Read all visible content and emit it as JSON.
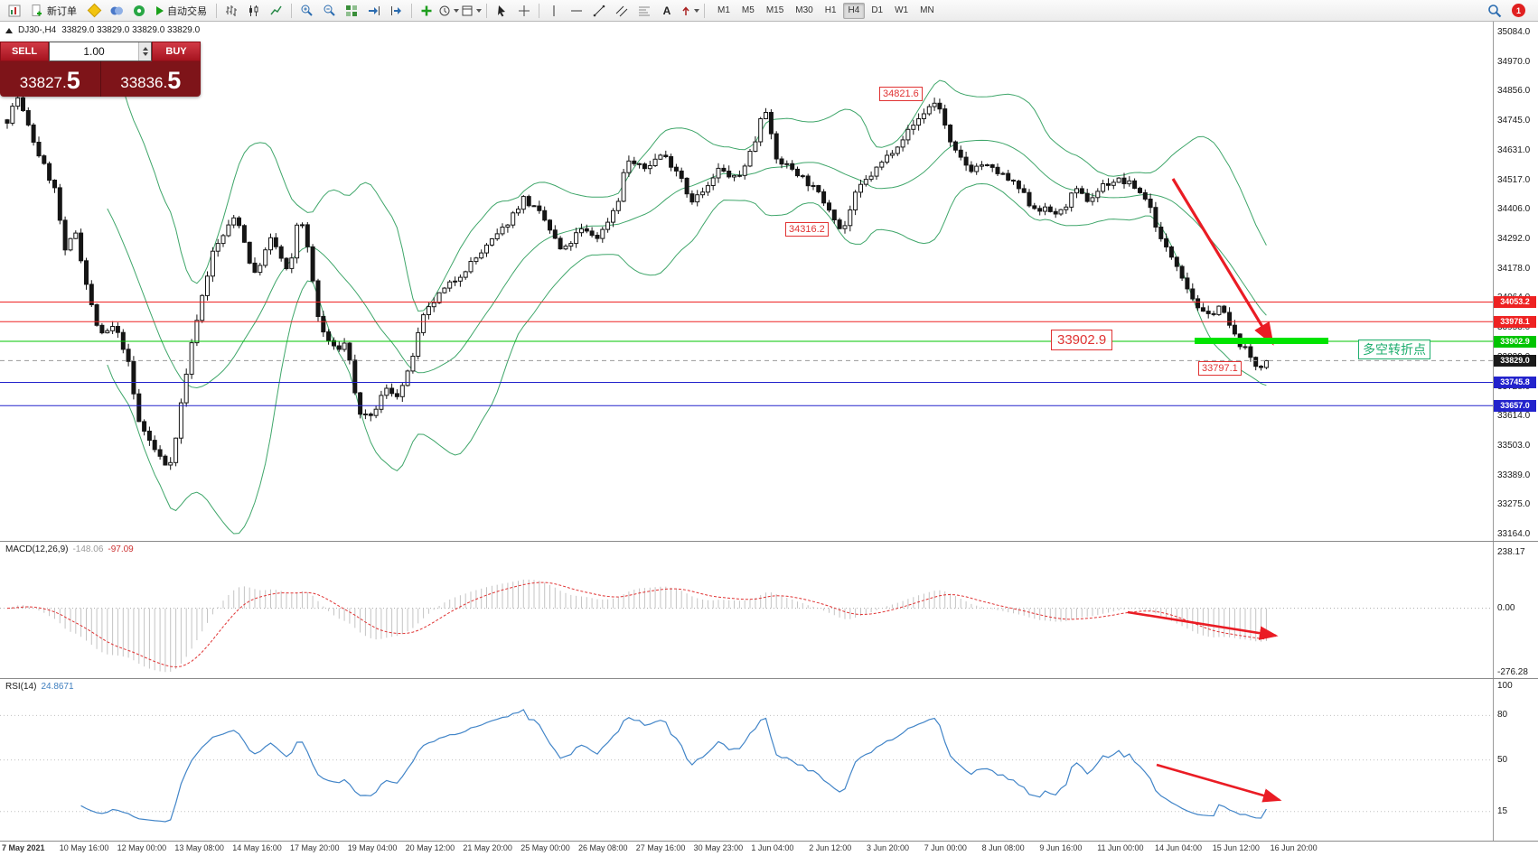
{
  "toolbar": {
    "new_order": "新订单",
    "autotrading": "自动交易",
    "text_tool": "A",
    "timeframes": [
      "M1",
      "M5",
      "M15",
      "M30",
      "H1",
      "H4",
      "D1",
      "W1",
      "MN"
    ],
    "active_timeframe": "H4",
    "notification_count": "1"
  },
  "header": {
    "symbol": "DJ30-,H4",
    "ohlc": "33829.0 33829.0 33829.0 33829.0"
  },
  "trade_panel": {
    "sell_label": "SELL",
    "buy_label": "BUY",
    "volume": "1.00",
    "sell_price": "33827.",
    "sell_price_big": "5",
    "buy_price": "33836.",
    "buy_price_big": "5"
  },
  "chart_data": {
    "type": "candlestick",
    "symbol": "DJ30-",
    "timeframe": "H4",
    "price_axis": {
      "max": 35084.0,
      "min": 33164.0,
      "ticks": [
        "35084.0",
        "34970.0",
        "34856.0",
        "34745.0",
        "34631.0",
        "34517.0",
        "34406.0",
        "34292.0",
        "34178.0",
        "34064.0",
        "33953.0",
        "33839.0",
        "33728.0",
        "33614.0",
        "33503.0",
        "33389.0",
        "33275.0",
        "33164.0"
      ]
    },
    "levels": [
      {
        "price": 34053.2,
        "label": "34053.2",
        "color": "#ee2222",
        "style": "solid"
      },
      {
        "price": 33978.1,
        "label": "33978.1",
        "color": "#ee2222",
        "style": "solid"
      },
      {
        "price": 33902.9,
        "label": "33902.9",
        "color": "#00c400",
        "style": "solid"
      },
      {
        "price": 33829.0,
        "label": "33829.0",
        "color": "#1a1a1a",
        "style": "dashed",
        "current": true
      },
      {
        "price": 33745.8,
        "label": "33745.8",
        "color": "#2323cc",
        "style": "solid"
      },
      {
        "price": 33657.0,
        "label": "33657.0",
        "color": "#2323cc",
        "style": "solid"
      }
    ],
    "last_price": 33829.0,
    "num_bars": 240,
    "waypoints": [
      [
        0,
        34750
      ],
      [
        0.008,
        34840
      ],
      [
        0.023,
        34640
      ],
      [
        0.038,
        34480
      ],
      [
        0.046,
        34240
      ],
      [
        0.054,
        34330
      ],
      [
        0.065,
        34070
      ],
      [
        0.074,
        33920
      ],
      [
        0.085,
        33960
      ],
      [
        0.095,
        33850
      ],
      [
        0.104,
        33600
      ],
      [
        0.118,
        33480
      ],
      [
        0.128,
        33420
      ],
      [
        0.135,
        33550
      ],
      [
        0.139,
        33700
      ],
      [
        0.15,
        33980
      ],
      [
        0.163,
        34240
      ],
      [
        0.182,
        34390
      ],
      [
        0.196,
        34150
      ],
      [
        0.21,
        34300
      ],
      [
        0.224,
        34150
      ],
      [
        0.232,
        34410
      ],
      [
        0.24,
        34220
      ],
      [
        0.248,
        33960
      ],
      [
        0.26,
        33870
      ],
      [
        0.27,
        33900
      ],
      [
        0.278,
        33640
      ],
      [
        0.288,
        33600
      ],
      [
        0.3,
        33720
      ],
      [
        0.31,
        33700
      ],
      [
        0.317,
        33760
      ],
      [
        0.33,
        33990
      ],
      [
        0.341,
        34070
      ],
      [
        0.36,
        34160
      ],
      [
        0.38,
        34260
      ],
      [
        0.395,
        34340
      ],
      [
        0.41,
        34450
      ],
      [
        0.425,
        34380
      ],
      [
        0.441,
        34240
      ],
      [
        0.455,
        34330
      ],
      [
        0.47,
        34300
      ],
      [
        0.485,
        34440
      ],
      [
        0.492,
        34600
      ],
      [
        0.505,
        34560
      ],
      [
        0.52,
        34620
      ],
      [
        0.535,
        34540
      ],
      [
        0.542,
        34440
      ],
      [
        0.555,
        34480
      ],
      [
        0.565,
        34560
      ],
      [
        0.58,
        34520
      ],
      [
        0.595,
        34680
      ],
      [
        0.601,
        34830
      ],
      [
        0.61,
        34600
      ],
      [
        0.625,
        34560
      ],
      [
        0.642,
        34480
      ],
      [
        0.655,
        34400
      ],
      [
        0.663,
        34316
      ],
      [
        0.675,
        34480
      ],
      [
        0.69,
        34560
      ],
      [
        0.704,
        34640
      ],
      [
        0.718,
        34720
      ],
      [
        0.732,
        34800
      ],
      [
        0.739,
        34822
      ],
      [
        0.75,
        34640
      ],
      [
        0.765,
        34560
      ],
      [
        0.774,
        34580
      ],
      [
        0.79,
        34540
      ],
      [
        0.805,
        34480
      ],
      [
        0.813,
        34420
      ],
      [
        0.836,
        34390
      ],
      [
        0.848,
        34480
      ],
      [
        0.859,
        34440
      ],
      [
        0.87,
        34500
      ],
      [
        0.882,
        34520
      ],
      [
        0.894,
        34500
      ],
      [
        0.906,
        34440
      ],
      [
        0.917,
        34280
      ],
      [
        0.929,
        34200
      ],
      [
        0.94,
        34080
      ],
      [
        0.952,
        33990
      ],
      [
        0.963,
        34040
      ],
      [
        0.975,
        33920
      ],
      [
        0.985,
        33860
      ],
      [
        0.993,
        33800
      ],
      [
        1,
        33829
      ]
    ],
    "time_labels": [
      "7 May 2021",
      "10 May 16:00",
      "12 May 00:00",
      "13 May 08:00",
      "14 May 16:00",
      "17 May 20:00",
      "19 May 04:00",
      "20 May 12:00",
      "21 May 20:00",
      "25 May 00:00",
      "26 May 08:00",
      "27 May 16:00",
      "30 May 23:00",
      "1 Jun 04:00",
      "2 Jun 12:00",
      "3 Jun 20:00",
      "7 Jun 00:00",
      "8 Jun 08:00",
      "9 Jun 16:00",
      "11 Jun 00:00",
      "14 Jun 04:00",
      "15 Jun 12:00",
      "16 Jun 20:00"
    ],
    "annotations": {
      "tag_high": "34821.6",
      "tag_mid": "34316.2",
      "tag_level": "33902.9",
      "tag_low": "33797.1",
      "note_cn": "多空转折点"
    },
    "arrows": {
      "main": [
        1298,
        174,
        1408,
        356
      ],
      "macd": [
        1248,
        78,
        1412,
        104
      ],
      "rsi": [
        1280,
        95,
        1416,
        134
      ]
    },
    "macd": {
      "label": "MACD(12,26,9)",
      "value_main": "-148.06",
      "value_signal": "-97.09",
      "ticks": [
        "238.17",
        "0.00",
        "-276.28"
      ],
      "tick_values": [
        238.17,
        0,
        -276.28
      ]
    },
    "rsi": {
      "label": "RSI(14)",
      "value": "24.8671",
      "ticks": [
        "100",
        "80",
        "50",
        "15"
      ],
      "tick_values": [
        100,
        80,
        50,
        15
      ]
    },
    "colors": {
      "band": "#3fa66a",
      "up": "#ffffff",
      "down": "#151515",
      "macd_hist": "#c4c4c4",
      "macd_signal": "#e03333",
      "rsi_line": "#4285c8",
      "arrow": "#ea1c24",
      "segment": "#00e400"
    }
  }
}
